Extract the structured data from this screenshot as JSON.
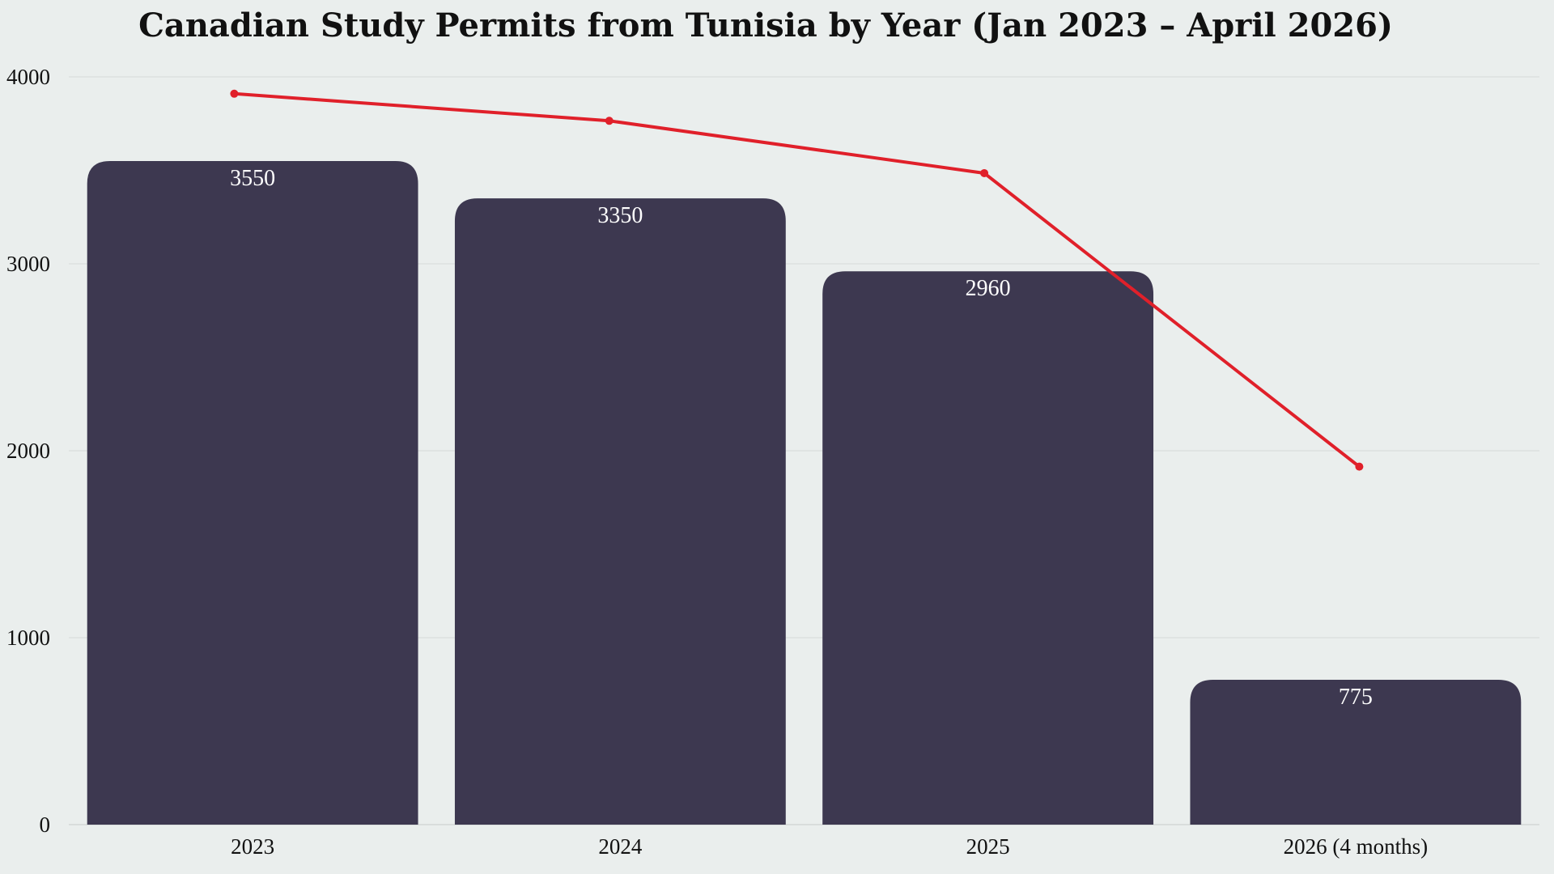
{
  "chart_data": {
    "type": "bar",
    "title": "Canadian Study Permits from Tunisia by Year (Jan 2023 – April 2026)",
    "xlabel": "",
    "ylabel": "",
    "categories": [
      "2023",
      "2024",
      "2025",
      "2026 (4 months)"
    ],
    "series": [
      {
        "type": "bar",
        "values": [
          3550,
          3350,
          2960,
          775
        ],
        "data_labels": [
          "3550",
          "3350",
          "2960",
          "775"
        ],
        "color": "#3d3850"
      },
      {
        "type": "line",
        "values": [
          3910,
          3765,
          3485,
          1915
        ],
        "color": "#e0202a"
      }
    ],
    "ylim": [
      0,
      4000
    ],
    "yticks": [
      0,
      1000,
      2000,
      3000,
      4000
    ],
    "ytick_labels": [
      "0",
      "1000",
      "2000",
      "3000",
      "4000"
    ],
    "grid": true,
    "legend": "none"
  }
}
